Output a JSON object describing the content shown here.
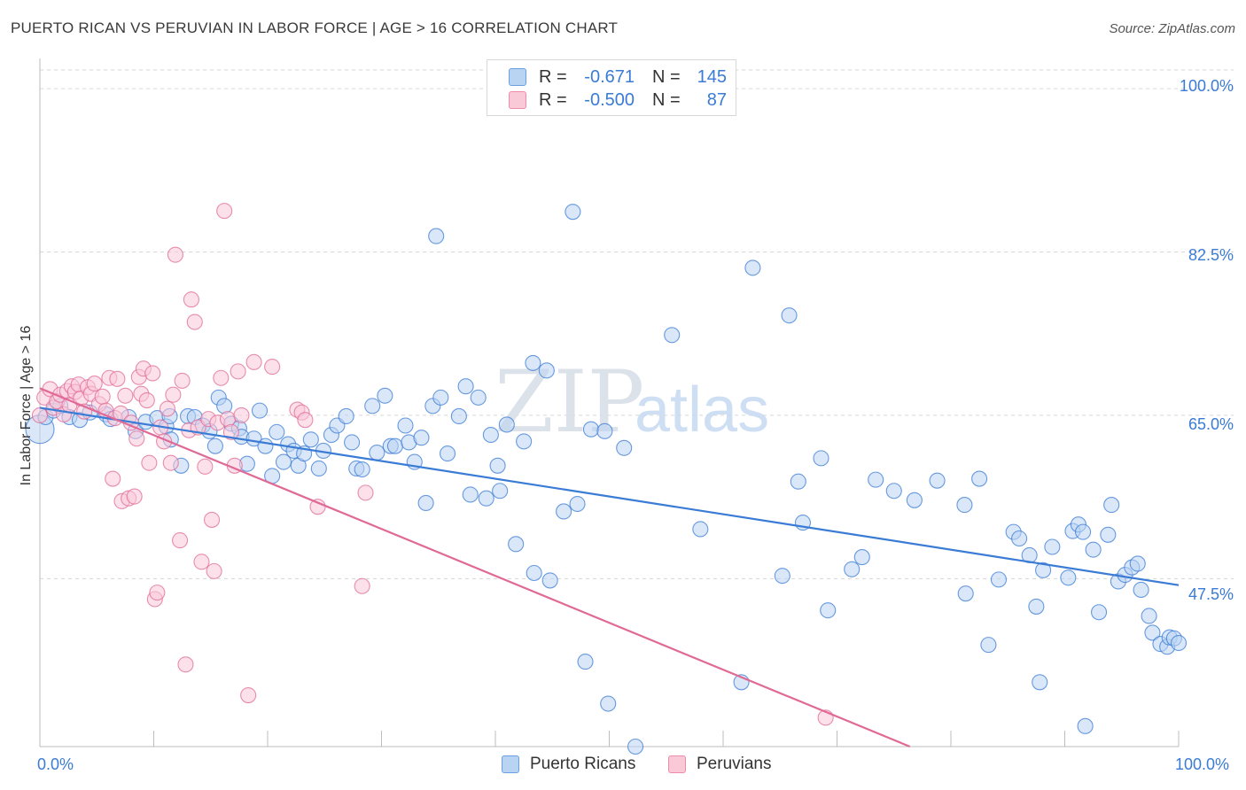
{
  "title": "PUERTO RICAN VS PERUVIAN IN LABOR FORCE | AGE > 16 CORRELATION CHART",
  "source": "Source: ZipAtlas.com",
  "watermark": {
    "zip": "ZIP",
    "atlas": "atlas"
  },
  "legend_top": {
    "r_label": "R =",
    "n_label": "N =",
    "rows": [
      {
        "r": "-0.671",
        "n": "145",
        "color": "#6b9fe0",
        "fill": "#b9d3f3"
      },
      {
        "r": "-0.500",
        "n": "87",
        "color": "#f08bab",
        "fill": "#f9c9d8"
      }
    ]
  },
  "legend_bottom": [
    {
      "label": "Puerto Ricans",
      "color": "#6b9fe0",
      "fill": "#b9d3f3"
    },
    {
      "label": "Peruvians",
      "color": "#f08bab",
      "fill": "#f9c9d8"
    }
  ],
  "chart_data": {
    "type": "scatter",
    "title": "PUERTO RICAN VS PERUVIAN IN LABOR FORCE | AGE > 16 CORRELATION CHART",
    "xlabel": "",
    "ylabel": "In Labor Force | Age > 16",
    "xlim": [
      0,
      100
    ],
    "ylim": [
      29.5,
      102
    ],
    "x_tick_labels": [
      "0.0%",
      "100.0%"
    ],
    "y_ticks": [
      100.0,
      82.5,
      65.0,
      47.5
    ],
    "y_tick_labels": [
      "100.0%",
      "82.5%",
      "65.0%",
      "47.5%"
    ],
    "grid": true,
    "legend_position": "top-center",
    "series": [
      {
        "name": "Puerto Ricans",
        "color": "#3a7bd5",
        "fill": "#b9d3f3",
        "trend": {
          "x0": 0,
          "y0": 65.8,
          "x1": 100,
          "y1": 46.8
        },
        "points": [
          [
            0,
            63.5
          ],
          [
            0.5,
            64.8
          ],
          [
            1.2,
            65.5
          ],
          [
            1.8,
            66.0
          ],
          [
            2.6,
            64.8
          ],
          [
            3.5,
            64.5
          ],
          [
            4.4,
            65.3
          ],
          [
            5.8,
            65.1
          ],
          [
            6.2,
            64.6
          ],
          [
            7.8,
            64.8
          ],
          [
            8.4,
            63.3
          ],
          [
            9.3,
            64.3
          ],
          [
            10.3,
            64.7
          ],
          [
            11.1,
            63.8
          ],
          [
            11.4,
            64.9
          ],
          [
            11.5,
            62.4
          ],
          [
            12.4,
            59.6
          ],
          [
            13.0,
            64.9
          ],
          [
            13.6,
            64.8
          ],
          [
            14.3,
            63.9
          ],
          [
            14.9,
            63.3
          ],
          [
            15.4,
            61.7
          ],
          [
            15.7,
            66.9
          ],
          [
            16.2,
            66.0
          ],
          [
            16.8,
            64.1
          ],
          [
            17.5,
            63.6
          ],
          [
            17.7,
            62.7
          ],
          [
            18.2,
            59.8
          ],
          [
            18.8,
            62.5
          ],
          [
            19.3,
            65.5
          ],
          [
            19.8,
            61.7
          ],
          [
            20.4,
            58.5
          ],
          [
            20.8,
            63.2
          ],
          [
            21.4,
            60.0
          ],
          [
            21.8,
            61.9
          ],
          [
            22.3,
            61.2
          ],
          [
            22.7,
            59.6
          ],
          [
            23.2,
            60.9
          ],
          [
            23.8,
            62.4
          ],
          [
            24.5,
            59.3
          ],
          [
            24.9,
            61.2
          ],
          [
            25.6,
            62.9
          ],
          [
            26.1,
            63.9
          ],
          [
            26.9,
            64.9
          ],
          [
            27.4,
            62.1
          ],
          [
            27.8,
            59.3
          ],
          [
            28.3,
            59.2
          ],
          [
            29.2,
            66.0
          ],
          [
            29.6,
            61.0
          ],
          [
            30.3,
            67.1
          ],
          [
            30.8,
            61.7
          ],
          [
            31.2,
            61.7
          ],
          [
            32.1,
            63.9
          ],
          [
            32.4,
            62.1
          ],
          [
            32.9,
            60.0
          ],
          [
            33.5,
            62.6
          ],
          [
            33.9,
            55.6
          ],
          [
            34.5,
            66.0
          ],
          [
            34.8,
            84.2
          ],
          [
            35.2,
            66.9
          ],
          [
            35.8,
            60.9
          ],
          [
            36.8,
            64.9
          ],
          [
            37.4,
            68.1
          ],
          [
            37.8,
            56.5
          ],
          [
            38.5,
            66.9
          ],
          [
            39.2,
            56.1
          ],
          [
            39.6,
            62.9
          ],
          [
            40.2,
            59.6
          ],
          [
            40.4,
            56.9
          ],
          [
            41.0,
            64.0
          ],
          [
            41.8,
            51.2
          ],
          [
            42.5,
            62.2
          ],
          [
            43.3,
            70.6
          ],
          [
            44.5,
            69.8
          ],
          [
            43.4,
            48.1
          ],
          [
            44.8,
            47.3
          ],
          [
            46.0,
            54.7
          ],
          [
            46.8,
            86.8
          ],
          [
            47.2,
            55.5
          ],
          [
            47.9,
            38.6
          ],
          [
            48.4,
            63.5
          ],
          [
            49.6,
            63.3
          ],
          [
            49.9,
            34.1
          ],
          [
            51.3,
            61.5
          ],
          [
            52.3,
            29.5
          ],
          [
            55.5,
            73.6
          ],
          [
            58.0,
            52.8
          ],
          [
            61.6,
            36.4
          ],
          [
            62.6,
            80.8
          ],
          [
            65.2,
            47.8
          ],
          [
            65.8,
            75.7
          ],
          [
            66.6,
            57.9
          ],
          [
            67.0,
            53.5
          ],
          [
            68.6,
            60.4
          ],
          [
            69.2,
            44.1
          ],
          [
            71.3,
            48.5
          ],
          [
            72.2,
            49.8
          ],
          [
            73.4,
            58.1
          ],
          [
            75.0,
            56.9
          ],
          [
            76.8,
            55.9
          ],
          [
            78.8,
            58.0
          ],
          [
            81.2,
            55.4
          ],
          [
            81.3,
            45.9
          ],
          [
            82.5,
            58.2
          ],
          [
            83.3,
            40.4
          ],
          [
            84.2,
            47.4
          ],
          [
            85.5,
            52.5
          ],
          [
            86.0,
            51.8
          ],
          [
            86.9,
            50.0
          ],
          [
            87.5,
            44.5
          ],
          [
            87.8,
            36.4
          ],
          [
            88.1,
            48.4
          ],
          [
            88.9,
            50.9
          ],
          [
            90.3,
            47.6
          ],
          [
            90.7,
            52.6
          ],
          [
            91.2,
            53.3
          ],
          [
            91.8,
            31.7
          ],
          [
            91.6,
            52.5
          ],
          [
            92.5,
            50.6
          ],
          [
            93.0,
            43.9
          ],
          [
            93.8,
            52.2
          ],
          [
            94.1,
            55.4
          ],
          [
            94.7,
            47.2
          ],
          [
            95.3,
            47.9
          ],
          [
            95.9,
            48.7
          ],
          [
            96.4,
            49.1
          ],
          [
            96.7,
            46.3
          ],
          [
            97.4,
            43.5
          ],
          [
            97.7,
            41.7
          ],
          [
            98.4,
            40.5
          ],
          [
            99.0,
            40.2
          ],
          [
            99.2,
            41.2
          ],
          [
            99.6,
            41.1
          ],
          [
            100.0,
            40.6
          ]
        ]
      },
      {
        "name": "Peruvians",
        "color": "#e06a95",
        "fill": "#f9c9d8",
        "trend": {
          "x0": 0,
          "y0": 67.9,
          "x1": 76.4,
          "y1": 29.5
        },
        "points": [
          [
            0,
            65.0
          ],
          [
            0.4,
            66.9
          ],
          [
            0.9,
            67.8
          ],
          [
            1.2,
            65.8
          ],
          [
            1.5,
            66.5
          ],
          [
            1.8,
            67.2
          ],
          [
            2.1,
            65.1
          ],
          [
            2.4,
            67.6
          ],
          [
            2.6,
            66.1
          ],
          [
            2.8,
            68.1
          ],
          [
            3.1,
            67.5
          ],
          [
            3.4,
            68.3
          ],
          [
            3.6,
            66.8
          ],
          [
            3.9,
            65.4
          ],
          [
            4.2,
            68.0
          ],
          [
            4.5,
            67.3
          ],
          [
            4.8,
            68.4
          ],
          [
            5.2,
            66.2
          ],
          [
            5.5,
            67.0
          ],
          [
            5.8,
            65.5
          ],
          [
            6.1,
            69.0
          ],
          [
            6.4,
            58.2
          ],
          [
            6.6,
            64.7
          ],
          [
            6.8,
            68.9
          ],
          [
            7.1,
            65.2
          ],
          [
            7.2,
            55.8
          ],
          [
            7.5,
            67.1
          ],
          [
            7.8,
            56.1
          ],
          [
            8.0,
            64.2
          ],
          [
            8.3,
            56.3
          ],
          [
            8.5,
            62.5
          ],
          [
            8.7,
            69.1
          ],
          [
            8.9,
            67.3
          ],
          [
            9.1,
            70.0
          ],
          [
            9.4,
            66.6
          ],
          [
            9.6,
            59.9
          ],
          [
            9.9,
            69.5
          ],
          [
            10.1,
            45.3
          ],
          [
            10.3,
            46.0
          ],
          [
            10.6,
            63.7
          ],
          [
            10.9,
            62.2
          ],
          [
            11.2,
            65.7
          ],
          [
            11.5,
            59.9
          ],
          [
            11.7,
            67.2
          ],
          [
            11.9,
            82.2
          ],
          [
            12.3,
            51.6
          ],
          [
            12.5,
            68.7
          ],
          [
            12.8,
            38.3
          ],
          [
            13.1,
            63.4
          ],
          [
            13.3,
            77.4
          ],
          [
            13.6,
            75.0
          ],
          [
            13.9,
            63.7
          ],
          [
            14.2,
            49.3
          ],
          [
            14.5,
            59.5
          ],
          [
            14.8,
            64.6
          ],
          [
            15.1,
            53.8
          ],
          [
            15.3,
            48.3
          ],
          [
            15.6,
            64.2
          ],
          [
            15.9,
            69.0
          ],
          [
            16.2,
            86.9
          ],
          [
            16.5,
            64.6
          ],
          [
            16.8,
            63.2
          ],
          [
            17.1,
            59.6
          ],
          [
            17.4,
            69.7
          ],
          [
            17.7,
            65.0
          ],
          [
            18.3,
            35.0
          ],
          [
            18.8,
            70.7
          ],
          [
            20.4,
            70.2
          ],
          [
            22.6,
            65.6
          ],
          [
            23.0,
            65.3
          ],
          [
            23.3,
            64.5
          ],
          [
            24.4,
            55.2
          ],
          [
            28.3,
            46.7
          ],
          [
            28.6,
            56.7
          ],
          [
            69.0,
            32.6
          ]
        ]
      }
    ]
  }
}
